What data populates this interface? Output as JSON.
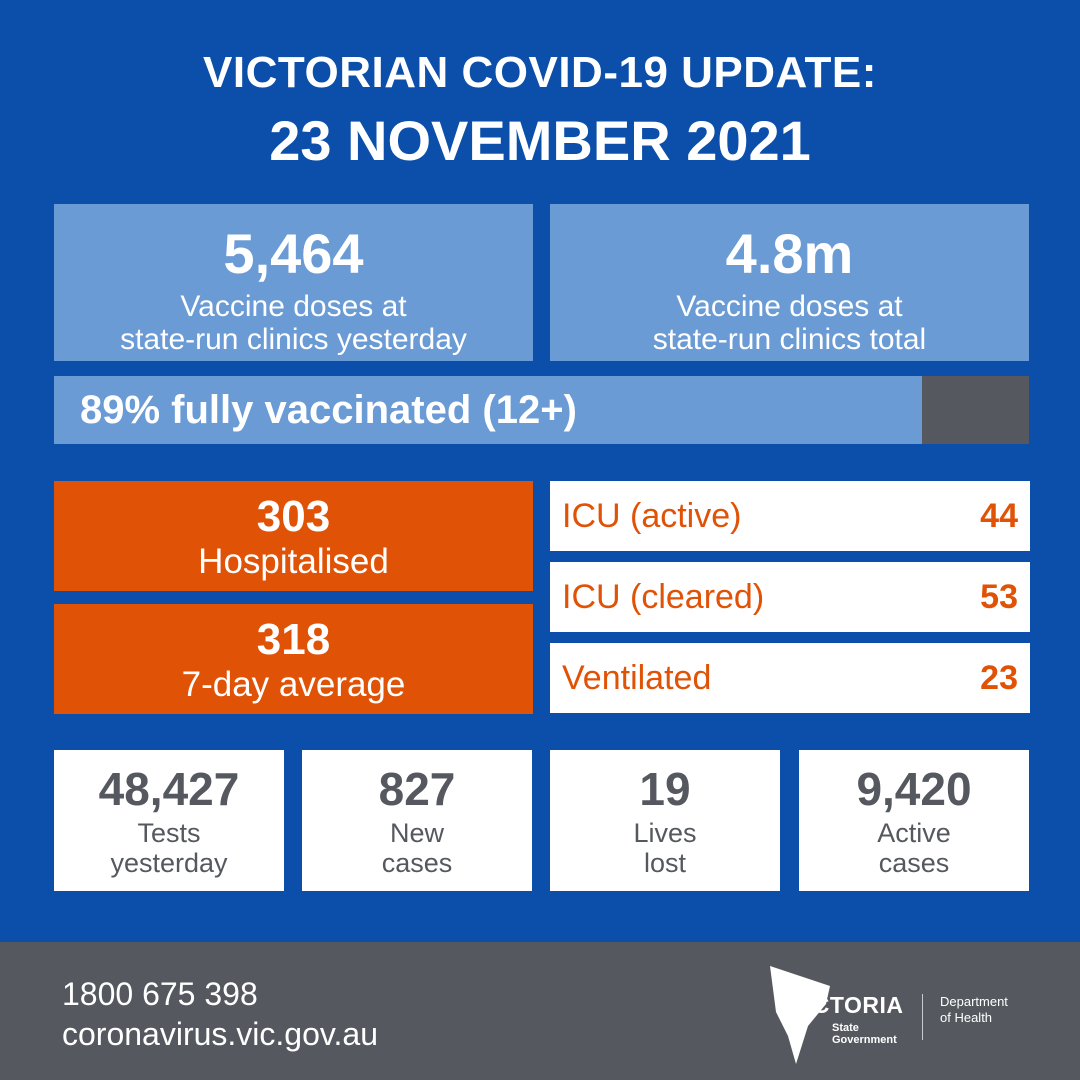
{
  "header": {
    "line1": "VICTORIAN COVID-19 UPDATE:",
    "line2": "23 NOVEMBER 2021"
  },
  "vaccine": {
    "yesterday": {
      "value": "5,464",
      "line1": "Vaccine doses at",
      "line2": "state-run clinics yesterday"
    },
    "total": {
      "value": "4.8m",
      "line1": "Vaccine doses at",
      "line2": "state-run clinics total"
    },
    "progress": {
      "label": "89% fully vaccinated (12+)",
      "percent": 89
    }
  },
  "hospital": {
    "hospitalised": {
      "value": "303",
      "label": "Hospitalised"
    },
    "average": {
      "value": "318",
      "label": "7-day average"
    }
  },
  "icu": [
    {
      "label": "ICU (active)",
      "value": "44"
    },
    {
      "label": "ICU (cleared)",
      "value": "53"
    },
    {
      "label": "Ventilated",
      "value": "23"
    }
  ],
  "stats": [
    {
      "value": "48,427",
      "line1": "Tests",
      "line2": "yesterday"
    },
    {
      "value": "827",
      "line1": "New",
      "line2": "cases"
    },
    {
      "value": "19",
      "line1": "Lives",
      "line2": "lost"
    },
    {
      "value": "9,420",
      "line1": "Active",
      "line2": "cases"
    }
  ],
  "footer": {
    "phone": "1800 675 398",
    "url": "coronavirus.vic.gov.au",
    "logo_name": "VICTORIA",
    "logo_sub1": "State",
    "logo_sub2": "Government",
    "dept1": "Department",
    "dept2": "of Health"
  },
  "colors": {
    "background": "#0b4faa",
    "light_blue": "#6a9bd5",
    "orange": "#e05206",
    "grey": "#55595f",
    "white": "#ffffff"
  }
}
